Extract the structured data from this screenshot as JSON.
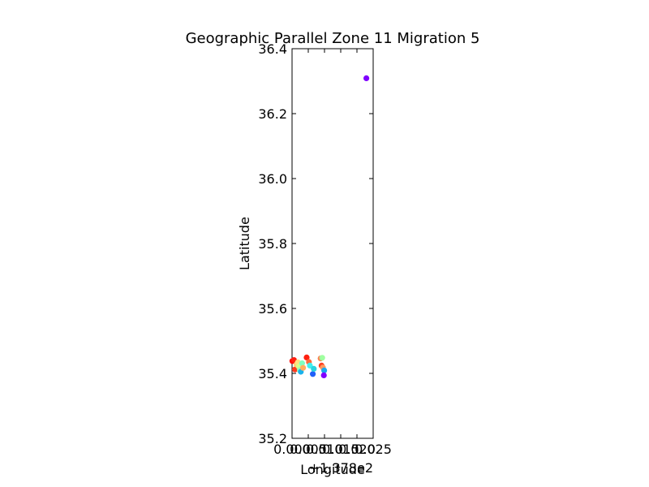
{
  "chart_data": {
    "type": "scatter",
    "title": "Geographic Parallel Zone 11 Migration 5",
    "xlabel": "Longitude",
    "ylabel": "Latitude",
    "x_offset_text": "+1.378e2",
    "xlim": [
      0.0,
      0.025
    ],
    "ylim": [
      35.2,
      36.4
    ],
    "x_ticks": [
      0.0,
      0.005,
      0.01,
      0.015,
      0.02,
      0.025
    ],
    "x_tick_labels": [
      "0.000",
      "0.005",
      "0.010",
      "0.015",
      "0.020",
      "0.025"
    ],
    "y_ticks": [
      35.2,
      35.4,
      35.6,
      35.8,
      36.0,
      36.2,
      36.4
    ],
    "y_tick_labels": [
      "35.2",
      "35.4",
      "35.6",
      "35.8",
      "36.0",
      "36.2",
      "36.4"
    ],
    "grid": false,
    "legend": "none",
    "points": [
      {
        "x": 0.0229,
        "y": 36.309,
        "color": "#7f00ff"
      },
      {
        "x": 0.0001,
        "y": 35.438,
        "color": "#ff0000"
      },
      {
        "x": 0.0006,
        "y": 35.441,
        "color": "#ff1f10"
      },
      {
        "x": 0.0009,
        "y": 35.412,
        "color": "#ff3a1e"
      },
      {
        "x": 0.0014,
        "y": 35.427,
        "color": "#ffd070"
      },
      {
        "x": 0.0018,
        "y": 35.434,
        "color": "#ffe080"
      },
      {
        "x": 0.0021,
        "y": 35.421,
        "color": "#d4ff8c"
      },
      {
        "x": 0.0024,
        "y": 35.41,
        "color": "#99ffb3"
      },
      {
        "x": 0.0027,
        "y": 35.405,
        "color": "#1ab2ec"
      },
      {
        "x": 0.0031,
        "y": 35.431,
        "color": "#80ffc0"
      },
      {
        "x": 0.0034,
        "y": 35.417,
        "color": "#ffb060"
      },
      {
        "x": 0.0045,
        "y": 35.449,
        "color": "#ff2010"
      },
      {
        "x": 0.0052,
        "y": 35.435,
        "color": "#ff6a38"
      },
      {
        "x": 0.0055,
        "y": 35.424,
        "color": "#40f0f0"
      },
      {
        "x": 0.0064,
        "y": 35.398,
        "color": "#2060f8"
      },
      {
        "x": 0.0067,
        "y": 35.414,
        "color": "#2ad4e0"
      },
      {
        "x": 0.0088,
        "y": 35.446,
        "color": "#ff8050"
      },
      {
        "x": 0.0093,
        "y": 35.448,
        "color": "#a0ffa0"
      },
      {
        "x": 0.0091,
        "y": 35.424,
        "color": "#ff4020"
      },
      {
        "x": 0.0095,
        "y": 35.418,
        "color": "#ff9a60"
      },
      {
        "x": 0.0099,
        "y": 35.409,
        "color": "#18a8f0"
      },
      {
        "x": 0.0098,
        "y": 35.394,
        "color": "#7f00ff"
      }
    ]
  }
}
